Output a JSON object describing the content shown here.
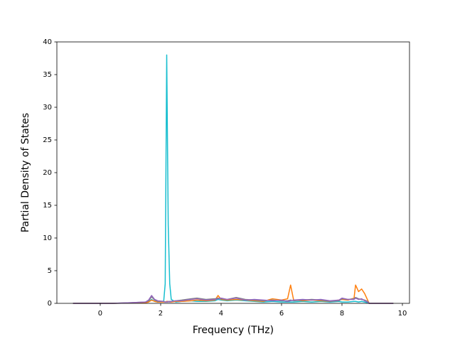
{
  "chart_data": {
    "type": "line",
    "xlabel": "Frequency (THz)",
    "ylabel": "Partial Density of States",
    "x": [
      -0.9,
      0.4,
      1.0,
      1.5,
      1.6,
      1.7,
      1.8,
      1.9,
      2.1,
      2.15,
      2.2,
      2.25,
      2.3,
      2.35,
      2.5,
      2.7,
      3.0,
      3.2,
      3.5,
      3.8,
      3.9,
      4.0,
      4.2,
      4.5,
      4.8,
      5.1,
      5.4,
      5.7,
      6.0,
      6.2,
      6.3,
      6.4,
      6.7,
      7.0,
      7.3,
      7.6,
      7.9,
      8.0,
      8.2,
      8.4,
      8.45,
      8.55,
      8.65,
      8.75,
      8.85,
      8.9,
      9.7
    ],
    "series": [
      {
        "color": "#17becf",
        "values": [
          0,
          0,
          0.05,
          0.1,
          0.3,
          0.6,
          0.3,
          0.2,
          0.3,
          3,
          38,
          12,
          3,
          0.6,
          0.2,
          0.3,
          0.4,
          0.3,
          0.3,
          0.4,
          0.6,
          0.5,
          0.4,
          0.5,
          0.4,
          0.3,
          0.2,
          0.3,
          0.2,
          0.2,
          0.2,
          0.2,
          0.3,
          0.2,
          0.3,
          0.2,
          0.3,
          0.2,
          0.2,
          0.3,
          0.3,
          0.2,
          0.3,
          0.2,
          0.1,
          0,
          0
        ]
      },
      {
        "color": "#ff7f0e",
        "values": [
          0,
          0,
          0.05,
          0.1,
          0.2,
          0.5,
          0.3,
          0.2,
          0.2,
          0.2,
          0.3,
          0.3,
          0.2,
          0.2,
          0.3,
          0.3,
          0.4,
          0.5,
          0.4,
          0.5,
          1.2,
          0.6,
          0.5,
          0.6,
          0.5,
          0.4,
          0.3,
          0.7,
          0.5,
          0.7,
          2.8,
          0.5,
          0.4,
          0.5,
          0.4,
          0.3,
          0.5,
          0.6,
          0.5,
          0.8,
          2.8,
          1.8,
          2.2,
          1.5,
          0.5,
          0,
          0
        ]
      },
      {
        "color": "#7f7f7f",
        "values": [
          0,
          0,
          0.1,
          0.2,
          0.4,
          1.0,
          0.5,
          0.3,
          0.3,
          0.2,
          0.2,
          0.2,
          0.3,
          0.3,
          0.4,
          0.5,
          0.7,
          0.8,
          0.6,
          0.7,
          0.8,
          0.7,
          0.6,
          0.9,
          0.6,
          0.5,
          0.4,
          0.5,
          0.4,
          0.4,
          0.5,
          0.4,
          0.5,
          0.6,
          0.5,
          0.3,
          0.4,
          0.7,
          0.6,
          0.7,
          0.9,
          0.7,
          0.6,
          0.5,
          0.3,
          0,
          0
        ]
      },
      {
        "color": "#9467bd",
        "values": [
          0,
          0,
          0.1,
          0.2,
          0.5,
          1.2,
          0.6,
          0.4,
          0.3,
          0.2,
          0.2,
          0.3,
          0.2,
          0.3,
          0.4,
          0.4,
          0.6,
          0.7,
          0.5,
          0.6,
          0.7,
          0.8,
          0.6,
          0.8,
          0.5,
          0.6,
          0.5,
          0.4,
          0.5,
          0.3,
          0.4,
          0.5,
          0.6,
          0.5,
          0.6,
          0.4,
          0.5,
          0.8,
          0.6,
          0.6,
          0.8,
          0.6,
          0.7,
          0.4,
          0.2,
          0,
          0
        ]
      }
    ],
    "xlim": [
      -1.435,
      10.235
    ],
    "ylim": [
      0,
      40
    ],
    "xticks": [
      0,
      2,
      4,
      6,
      8,
      10
    ],
    "yticks": [
      0,
      5,
      10,
      15,
      20,
      25,
      30,
      35,
      40
    ],
    "grid": false
  }
}
